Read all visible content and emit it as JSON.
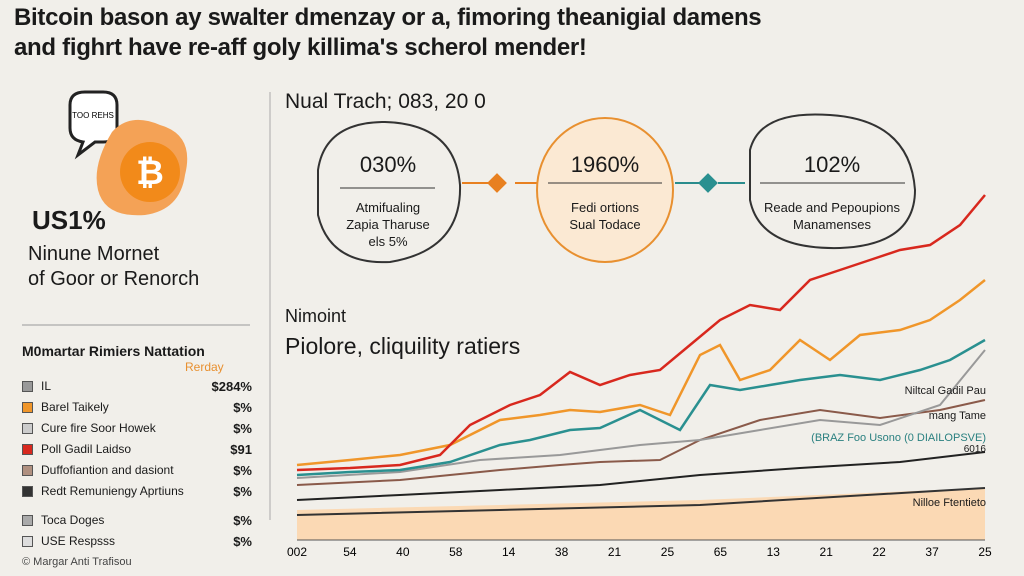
{
  "header": {
    "title": [
      "Bitcoin bason ay swalter dmenzay or a, fimoring theanigial damens",
      "and fighrt have re-aff goly killima's scherol mender!"
    ]
  },
  "left": {
    "bubble": "TOO REHS",
    "logo": "₿",
    "stat": "US1%",
    "subtitle": [
      "Ninune Mornet",
      "of Goor or Renorch"
    ]
  },
  "table": {
    "heading": "M0martar Rimiers Nattation",
    "column": "Rerday",
    "rows": [
      [
        "IL",
        "$284%"
      ],
      [
        "Barel Taikely",
        "$%"
      ],
      [
        "Cure fire Soor Howek",
        "$%"
      ],
      [
        "Poll Gadil Laidso",
        "$91"
      ],
      [
        "Duffofiantion and dasiont",
        "$%"
      ],
      [
        "Redt Remuniengy Aprtiuns",
        "$%"
      ],
      [
        "Toca Doges",
        "$%"
      ],
      [
        "USE Respsss",
        "$%"
      ]
    ],
    "footer": "© Margar Anti Trafisou"
  },
  "middle": {
    "heading": "Nual Trach; 083, 20 0",
    "circles": [
      {
        "value": "030%",
        "text": [
          "Atmifualing",
          "Zapia Tharuse",
          "els 5%"
        ]
      },
      {
        "value": "1960%",
        "text": [
          "Fedi ortions",
          "Sual Todace"
        ]
      },
      {
        "value": "102%",
        "text": [
          "Reade and Pepoupions",
          "Manamenses"
        ]
      }
    ]
  },
  "chart": {
    "kicker": "Nimoint",
    "title": "Piolore, cliquility ratiers",
    "annotations": [
      "Niltcal Gadil Pau",
      "mang Tame",
      "(BRAZ Foo Usono (0 DIAILOPSVE)",
      "6016",
      "Nilloe Ftentieto"
    ],
    "x_labels": [
      "002",
      "54",
      "40",
      "58",
      "14",
      "38",
      "21",
      "25",
      "65",
      "13",
      "21",
      "22",
      "37",
      "25"
    ]
  }
}
